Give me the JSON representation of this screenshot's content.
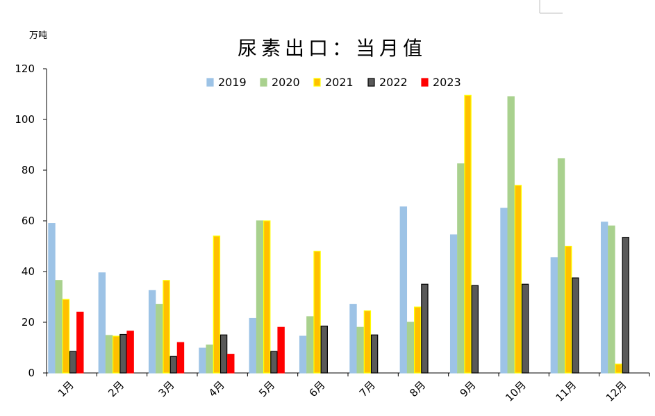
{
  "chart_data": {
    "type": "bar",
    "title": "尿素出口：当月值",
    "ylabel": "万吨",
    "ylim": [
      0,
      120
    ],
    "yticks": [
      0,
      20,
      40,
      60,
      80,
      100,
      120
    ],
    "grid": false,
    "legend_position": "top",
    "categories": [
      "1月",
      "2月",
      "3月",
      "4月",
      "5月",
      "6月",
      "7月",
      "8月",
      "9月",
      "10月",
      "11月",
      "12月"
    ],
    "series": [
      {
        "name": "2019",
        "color": "#9DC3E6",
        "stroke": "#9DC3E6",
        "values": [
          59,
          39.5,
          32.5,
          9.8,
          21.5,
          14.5,
          27,
          65.5,
          54.5,
          65,
          45.5,
          59.5
        ]
      },
      {
        "name": "2020",
        "color": "#A9D18E",
        "stroke": "#A9D18E",
        "values": [
          36.5,
          14.8,
          27,
          11,
          60,
          22.2,
          18,
          20,
          82.5,
          109,
          84.5,
          58
        ]
      },
      {
        "name": "2021",
        "color": "#FFC000",
        "stroke": "#FFFF00",
        "values": [
          29,
          14.5,
          36.5,
          54,
          60,
          48,
          24.5,
          26,
          109.5,
          74,
          50,
          3.5
        ]
      },
      {
        "name": "2022",
        "color": "#595959",
        "stroke": "#000000",
        "values": [
          8.5,
          15.2,
          6.5,
          15,
          8.5,
          18.5,
          15,
          35,
          34.5,
          35,
          37.5,
          53.5
        ]
      },
      {
        "name": "2023",
        "color": "#FF0000",
        "stroke": "#FF0000",
        "values": [
          24,
          16.5,
          12,
          7.3,
          18,
          null,
          null,
          null,
          null,
          null,
          null,
          null
        ]
      }
    ]
  }
}
